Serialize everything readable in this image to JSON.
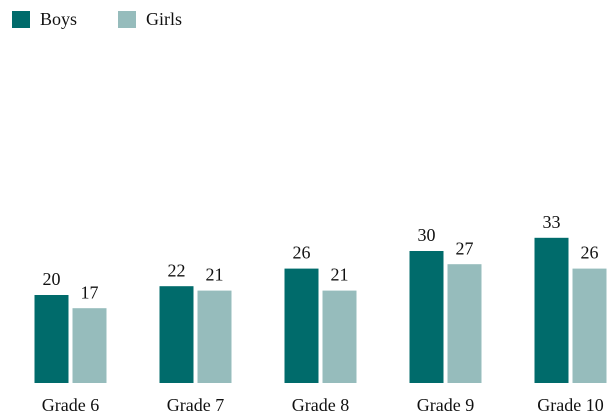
{
  "chart_data": {
    "type": "bar",
    "categories": [
      "Grade 6",
      "Grade 7",
      "Grade 8",
      "Grade 9",
      "Grade 10"
    ],
    "series": [
      {
        "name": "Boys",
        "color": "#006b6b",
        "values": [
          20,
          22,
          26,
          30,
          33
        ]
      },
      {
        "name": "Girls",
        "color": "#96bcbc",
        "values": [
          17,
          21,
          21,
          27,
          26
        ]
      }
    ],
    "ylim": [
      0,
      70
    ],
    "legend": "top-left"
  }
}
